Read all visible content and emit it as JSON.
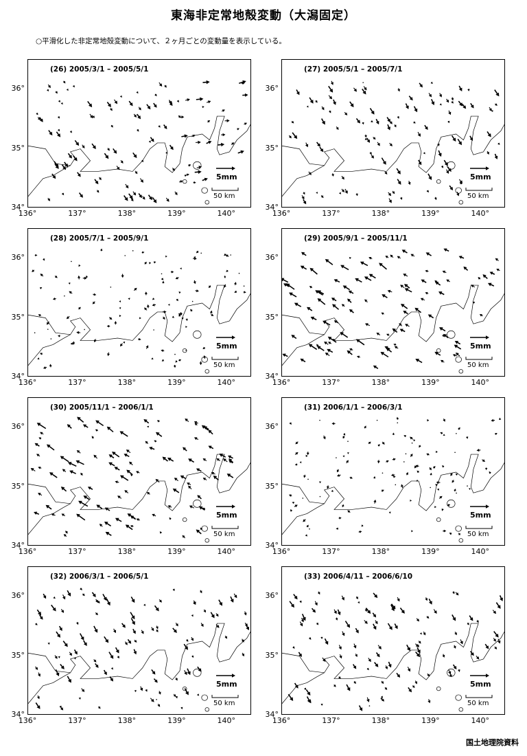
{
  "title": "東海非定常地殻変動（大潟固定）",
  "subtitle": "○平滑化した非定常地殻変動について、２ヶ月ごとの変動量を表示している。",
  "credit": "国土地理院資料",
  "axis": {
    "lon_ticks": [
      "136°",
      "137°",
      "138°",
      "139°",
      "140°"
    ],
    "lat_ticks": [
      "36°",
      "35°",
      "34°"
    ],
    "lon_range": [
      136,
      140.5
    ],
    "lat_range": [
      34,
      36.5
    ]
  },
  "scale": {
    "vector_label": "5mm",
    "distance_label": "50 km"
  },
  "colors": {
    "ink": "#000000",
    "background": "#ffffff"
  },
  "panels": [
    {
      "label": "(26) 2005/3/1 – 2005/5/1",
      "mode": "mixed"
    },
    {
      "label": "(27) 2005/5/1 – 2005/7/1",
      "mode": "southeast"
    },
    {
      "label": "(28) 2005/7/1 – 2005/9/1",
      "mode": "small"
    },
    {
      "label": "(29) 2005/9/1 – 2005/11/1",
      "mode": "northwest"
    },
    {
      "label": "(30) 2005/11/1 – 2006/1/1",
      "mode": "northwest"
    },
    {
      "label": "(31) 2006/1/1 – 2006/3/1",
      "mode": "small"
    },
    {
      "label": "(32) 2006/3/1 – 2006/5/1",
      "mode": "southeast"
    },
    {
      "label": "(33) 2006/4/11 – 2006/6/10",
      "mode": "southeast"
    }
  ]
}
